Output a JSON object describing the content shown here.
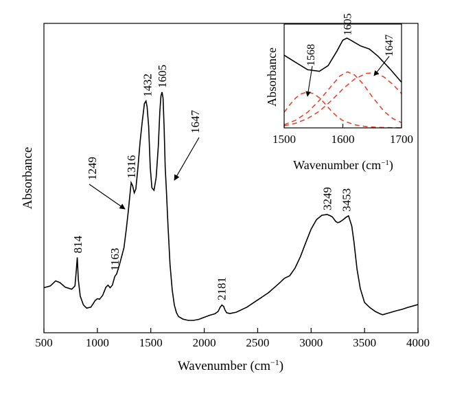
{
  "chart_data": [
    {
      "type": "line",
      "title": "",
      "xlabel": "Wavenumber (cm",
      "xlabel_sup": "−1",
      "xlabel_close": ")",
      "ylabel": "Absorbance",
      "xlim": [
        500,
        4000
      ],
      "ylim": [
        0,
        1
      ],
      "x_ticks": [
        "500",
        "1000",
        "1500",
        "2000",
        "2500",
        "3000",
        "3500",
        "4000"
      ],
      "grid": false,
      "legend": "none",
      "series": [
        {
          "color": "#000000",
          "dash": "solid",
          "x": [
            500,
            560,
            610,
            650,
            700,
            760,
            790,
            800,
            812,
            822,
            840,
            870,
            900,
            940,
            980,
            1000,
            1020,
            1050,
            1080,
            1100,
            1120,
            1140,
            1163,
            1180,
            1200,
            1230,
            1249,
            1270,
            1290,
            1305,
            1316,
            1330,
            1345,
            1360,
            1380,
            1400,
            1420,
            1440,
            1455,
            1465,
            1480,
            1495,
            1510,
            1530,
            1550,
            1570,
            1585,
            1595,
            1605,
            1615,
            1625,
            1635,
            1647,
            1660,
            1680,
            1700,
            1720,
            1740,
            1760,
            1800,
            1850,
            1900,
            1950,
            2000,
            2050,
            2100,
            2130,
            2150,
            2165,
            2181,
            2195,
            2210,
            2240,
            2300,
            2400,
            2500,
            2600,
            2700,
            2750,
            2800,
            2850,
            2900,
            2950,
            3000,
            3050,
            3100,
            3150,
            3180,
            3200,
            3230,
            3249,
            3270,
            3300,
            3330,
            3350,
            3380,
            3400,
            3430,
            3460,
            3500,
            3550,
            3600,
            3650,
            3670,
            3700,
            3750,
            3800,
            3850,
            3900,
            3950,
            4000
          ],
          "y": [
            0.128,
            0.135,
            0.155,
            0.148,
            0.13,
            0.122,
            0.135,
            0.18,
            0.247,
            0.16,
            0.095,
            0.06,
            0.048,
            0.052,
            0.078,
            0.085,
            0.083,
            0.098,
            0.13,
            0.138,
            0.128,
            0.138,
            0.172,
            0.182,
            0.208,
            0.255,
            0.285,
            0.355,
            0.43,
            0.495,
            0.54,
            0.528,
            0.5,
            0.515,
            0.6,
            0.7,
            0.78,
            0.85,
            0.86,
            0.838,
            0.76,
            0.6,
            0.52,
            0.51,
            0.56,
            0.68,
            0.82,
            0.88,
            0.895,
            0.87,
            0.75,
            0.6,
            0.5,
            0.38,
            0.22,
            0.12,
            0.06,
            0.03,
            0.015,
            0.005,
            0.0,
            0.0,
            0.004,
            0.012,
            0.02,
            0.026,
            0.035,
            0.052,
            0.06,
            0.055,
            0.04,
            0.03,
            0.027,
            0.032,
            0.052,
            0.08,
            0.108,
            0.145,
            0.165,
            0.175,
            0.205,
            0.25,
            0.305,
            0.358,
            0.395,
            0.412,
            0.415,
            0.41,
            0.405,
            0.388,
            0.383,
            0.386,
            0.395,
            0.405,
            0.41,
            0.37,
            0.31,
            0.2,
            0.125,
            0.07,
            0.05,
            0.035,
            0.025,
            0.022,
            0.026,
            0.032,
            0.038,
            0.043,
            0.05,
            0.056,
            0.062
          ]
        }
      ],
      "annotations": [
        {
          "label": "814",
          "x": 814,
          "y": 0.247,
          "style": "vertical"
        },
        {
          "label": "1163",
          "x": 1163,
          "y": 0.178,
          "style": "vertical"
        },
        {
          "label": "1249",
          "x": 1249,
          "y": 0.285,
          "style": "arrow"
        },
        {
          "label": "1316",
          "x": 1316,
          "y": 0.54,
          "style": "vertical"
        },
        {
          "label": "1432",
          "x": 1465,
          "y": 0.86,
          "style": "vertical"
        },
        {
          "label": "1605",
          "x": 1605,
          "y": 0.895,
          "style": "vertical"
        },
        {
          "label": "1647",
          "x": 1685,
          "y": 0.48,
          "style": "arrow"
        },
        {
          "label": "2181",
          "x": 2160,
          "y": 0.062,
          "style": "vertical"
        },
        {
          "label": "3249",
          "x": 3150,
          "y": 0.415,
          "style": "vertical"
        },
        {
          "label": "3453",
          "x": 3330,
          "y": 0.41,
          "style": "vertical"
        }
      ]
    },
    {
      "type": "line",
      "title": "",
      "xlabel": "Wavenumber (cm",
      "xlabel_sup": "−1",
      "xlabel_close": ")",
      "ylabel": "Absorbance",
      "xlim": [
        1500,
        1700
      ],
      "ylim": [
        0,
        1
      ],
      "x_ticks": [
        "1500",
        "1600",
        "1700"
      ],
      "grid": false,
      "legend": "none",
      "series": [
        {
          "color": "#000000",
          "dash": "solid",
          "x": [
            1500,
            1520,
            1540,
            1560,
            1575,
            1590,
            1600,
            1607,
            1615,
            1630,
            1645,
            1660,
            1680,
            1700
          ],
          "y": [
            0.7,
            0.63,
            0.56,
            0.545,
            0.6,
            0.74,
            0.845,
            0.865,
            0.84,
            0.79,
            0.76,
            0.69,
            0.57,
            0.44
          ]
        },
        {
          "color": "#e8432e",
          "dash": "dashed",
          "x": [
            1500,
            1510,
            1520,
            1530,
            1540,
            1550,
            1560,
            1570,
            1580,
            1590,
            1600,
            1620,
            1640,
            1660,
            1680,
            1700
          ],
          "y": [
            0.15,
            0.225,
            0.29,
            0.33,
            0.345,
            0.33,
            0.29,
            0.23,
            0.165,
            0.11,
            0.07,
            0.03,
            0.012,
            0.005,
            0.002,
            0.0
          ]
        },
        {
          "color": "#e8432e",
          "dash": "dashed",
          "x": [
            1500,
            1520,
            1540,
            1560,
            1580,
            1595,
            1608,
            1620,
            1635,
            1650,
            1670,
            1685,
            1700
          ],
          "y": [
            0.03,
            0.075,
            0.15,
            0.265,
            0.4,
            0.5,
            0.54,
            0.51,
            0.42,
            0.3,
            0.16,
            0.09,
            0.05
          ]
        },
        {
          "color": "#e8432e",
          "dash": "dashed",
          "x": [
            1500,
            1520,
            1540,
            1560,
            1580,
            1600,
            1620,
            1640,
            1655,
            1670,
            1685,
            1700
          ],
          "y": [
            0.02,
            0.045,
            0.09,
            0.16,
            0.26,
            0.375,
            0.47,
            0.525,
            0.53,
            0.49,
            0.42,
            0.33
          ]
        }
      ],
      "annotations": [
        {
          "label": "1568",
          "x": 1540,
          "y": 0.345,
          "style": "arrow"
        },
        {
          "label": "1605",
          "x": 1607,
          "y": 0.865,
          "style": "vertical"
        },
        {
          "label": "1647",
          "x": 1645,
          "y": 0.56,
          "style": "arrow"
        }
      ]
    }
  ]
}
